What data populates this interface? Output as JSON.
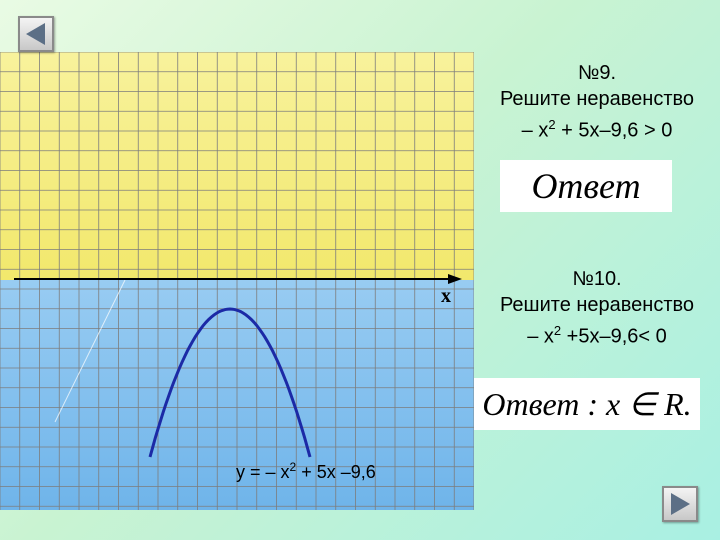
{
  "task9": {
    "number": "№9.",
    "instruction": "Решите неравенство",
    "expr_prefix": "– x",
    "expr_power": "2",
    "expr_suffix": " + 5x–9,6 > 0",
    "answer": "Ответ"
  },
  "task10": {
    "number": "№10.",
    "instruction": "Решите неравенство",
    "expr_prefix": "– x",
    "expr_power": "2",
    "expr_suffix": " +5x–9,6< 0",
    "answer": "Ответ : x ∈ R."
  },
  "graph": {
    "axis_label": "x",
    "function_prefix": "у = – x",
    "function_power": "2",
    "function_suffix": " + 5x –9,6"
  },
  "colors": {
    "upper_region": "#f6ee86",
    "lower_region": "#8fc6ef",
    "grid_line": "#7d7d7d",
    "curve": "#1c2aa6"
  },
  "navigation": {
    "prev_icon": "triangle-left-icon",
    "next_icon": "triangle-right-icon"
  }
}
